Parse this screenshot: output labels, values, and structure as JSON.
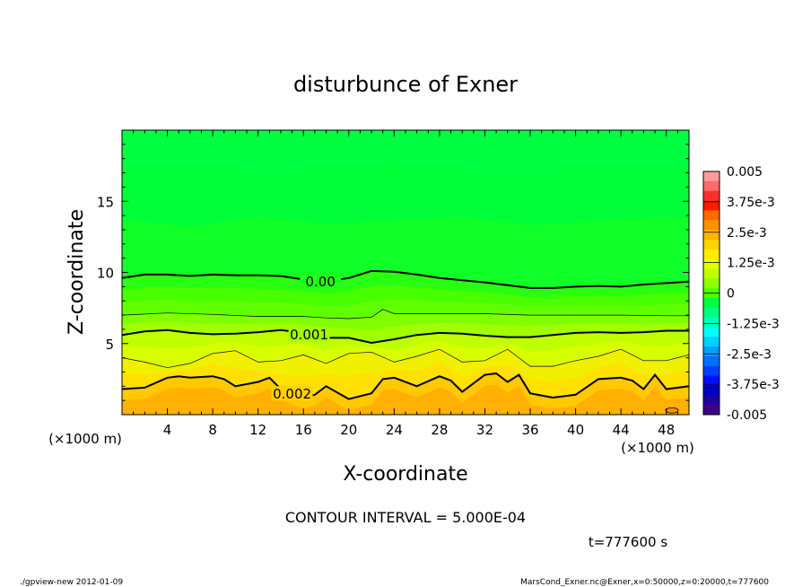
{
  "chart_data": {
    "type": "heatmap",
    "title": "disturbunce of Exner",
    "xlabel": "X-coordinate",
    "ylabel": "Z-coordinate",
    "x_unit": "(×1000 m)",
    "y_unit": "(×1000 m)",
    "xlim": [
      0,
      50
    ],
    "ylim": [
      0,
      20
    ],
    "xticks": [
      4,
      8,
      12,
      16,
      20,
      24,
      28,
      32,
      36,
      40,
      44,
      48
    ],
    "yticks": [
      5,
      10,
      15
    ],
    "colorbar": {
      "labels": [
        "0.005",
        "3.75e-3",
        "2.5e-3",
        "1.25e-3",
        "0",
        "-1.25e-3",
        "-2.5e-3",
        "-3.75e-3",
        "-0.005"
      ],
      "min": -0.005,
      "max": 0.005,
      "colors_top_to_bottom": [
        "#ff9a9a",
        "#ff6a6a",
        "#ff3030",
        "#ff1a00",
        "#ff6a00",
        "#ff9000",
        "#ffb400",
        "#ffd200",
        "#ffec00",
        "#e8ff00",
        "#c0ff00",
        "#90ff00",
        "#50ff00",
        "#00ff40",
        "#00ff80",
        "#00ffc0",
        "#00ffff",
        "#00d0ff",
        "#00a0ff",
        "#0070ff",
        "#0040ff",
        "#0010ff",
        "#0000c0",
        "#2000a0",
        "#400080"
      ]
    },
    "contour_labels": [
      "0.00",
      "0.001",
      "0.002"
    ],
    "contour_interval_text": "CONTOUR INTERVAL = 5.000E-04",
    "time_text": "t=777600  s",
    "heavy_contours": [
      {
        "level": 0.0,
        "label": "0.00",
        "x": [
          0,
          2,
          4,
          6,
          8,
          10,
          12,
          14,
          16,
          18,
          20,
          22,
          24,
          26,
          28,
          30,
          32,
          34,
          36,
          38,
          40,
          42,
          44,
          46,
          48,
          50
        ],
        "z": [
          9.6,
          9.85,
          9.85,
          9.75,
          9.85,
          9.8,
          9.8,
          9.75,
          9.5,
          9.35,
          9.6,
          10.1,
          10.05,
          9.85,
          9.6,
          9.45,
          9.3,
          9.1,
          8.9,
          8.9,
          9.0,
          9.05,
          9.0,
          9.15,
          9.25,
          9.35
        ]
      },
      {
        "level": 0.001,
        "label": "0.001",
        "x": [
          0,
          2,
          4,
          6,
          8,
          10,
          12,
          14,
          16,
          18,
          20,
          22,
          24,
          26,
          28,
          30,
          32,
          34,
          36,
          38,
          40,
          42,
          44,
          46,
          48,
          50
        ],
        "z": [
          5.6,
          5.85,
          5.95,
          5.75,
          5.65,
          5.7,
          5.8,
          5.95,
          5.75,
          5.4,
          5.4,
          5.05,
          5.3,
          5.6,
          5.75,
          5.7,
          5.55,
          5.45,
          5.45,
          5.6,
          5.75,
          5.8,
          5.75,
          5.8,
          5.9,
          5.9
        ]
      },
      {
        "level": 0.002,
        "label": "0.002",
        "x": [
          0,
          2,
          4,
          5,
          6,
          8,
          9,
          10,
          12,
          13,
          14,
          16,
          17,
          18,
          20,
          22,
          23,
          24,
          26,
          28,
          29,
          30,
          32,
          33,
          34,
          35,
          36,
          38,
          40,
          42,
          44,
          45,
          46,
          47,
          48,
          50
        ],
        "z": [
          1.8,
          1.9,
          2.6,
          2.7,
          2.6,
          2.7,
          2.5,
          2.0,
          2.3,
          2.6,
          1.8,
          1.2,
          1.4,
          2.0,
          1.1,
          1.5,
          2.5,
          2.6,
          2.0,
          2.7,
          2.4,
          1.6,
          2.8,
          2.9,
          2.3,
          2.8,
          1.5,
          1.2,
          1.4,
          2.5,
          2.6,
          2.4,
          1.8,
          2.8,
          1.8,
          2.0
        ]
      }
    ],
    "thin_contours": [
      {
        "level": 0.0005,
        "x": [
          0,
          4,
          8,
          12,
          16,
          18,
          20,
          22,
          23,
          24,
          28,
          32,
          36,
          40,
          44,
          48,
          50
        ],
        "z": [
          7.0,
          7.15,
          7.05,
          6.9,
          6.9,
          6.8,
          6.75,
          6.85,
          7.4,
          7.1,
          7.1,
          7.1,
          7.0,
          7.0,
          7.0,
          6.95,
          6.95
        ]
      },
      {
        "level": 0.0015,
        "x": [
          0,
          2,
          4,
          6,
          8,
          10,
          12,
          14,
          16,
          18,
          20,
          22,
          24,
          26,
          28,
          30,
          32,
          34,
          36,
          38,
          40,
          42,
          44,
          46,
          48,
          50
        ],
        "z": [
          4.0,
          3.7,
          3.3,
          3.6,
          4.3,
          4.5,
          3.7,
          3.8,
          4.2,
          3.6,
          4.3,
          4.4,
          3.7,
          4.1,
          4.6,
          3.7,
          3.8,
          4.6,
          3.4,
          3.4,
          3.8,
          4.1,
          4.6,
          3.8,
          3.8,
          4.2
        ]
      }
    ]
  },
  "footer": {
    "left": "./gpview-new   2012-01-09",
    "right": "MarsCond_Exner.nc@Exner,x=0:50000,z=0:20000,t=777600"
  }
}
